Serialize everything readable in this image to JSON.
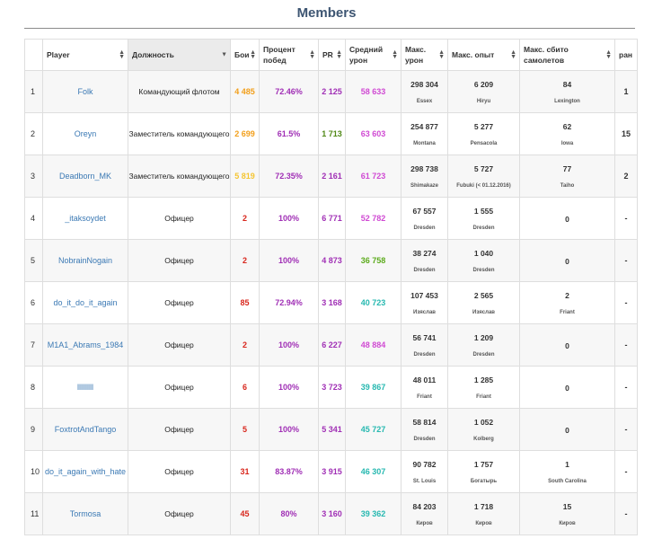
{
  "title": "Members",
  "headers": [
    "Player",
    "Должность",
    "Бои",
    "Процент побед",
    "PR",
    "Средний урон",
    "Макс. урон",
    "Макс. опыт",
    "Макс. сбито самолетов",
    "ран"
  ],
  "colors": {
    "title": "#3d5572",
    "player": "#3b79b4",
    "orange": "#f29f1a",
    "yellow": "#f5c531",
    "red": "#d8261c",
    "purple": "#a02fb5",
    "dark_green": "#508816",
    "green": "#5cab1c",
    "teal": "#26b8b0",
    "violet": "#d04ad3"
  },
  "rows": [
    {
      "num": "1",
      "player": "Folk",
      "position": "Командующий флотом",
      "battles": "4 485",
      "battles_color": "orange",
      "winrate": "72.46%",
      "winrate_color": "purple",
      "pr": "2 125",
      "pr_color": "purple",
      "avg": "58 633",
      "avg_color": "violet",
      "maxdmg": "298 304",
      "maxdmg_ship": "Essex",
      "maxexp": "6 209",
      "maxexp_ship": "Hiryu",
      "planes": "84",
      "planes_ship": "Lexington",
      "rank": "1"
    },
    {
      "num": "2",
      "player": "Oreyn",
      "position": "Заместитель командующего",
      "battles": "2 699",
      "battles_color": "orange",
      "winrate": "61.5%",
      "winrate_color": "purple",
      "pr": "1 713",
      "pr_color": "dark_green",
      "avg": "63 603",
      "avg_color": "violet",
      "maxdmg": "254 877",
      "maxdmg_ship": "Montana",
      "maxexp": "5 277",
      "maxexp_ship": "Pensacola",
      "planes": "62",
      "planes_ship": "Iowa",
      "rank": "15"
    },
    {
      "num": "3",
      "player": "Deadborn_MK",
      "position": "Заместитель командующего",
      "battles": "5 819",
      "battles_color": "yellow",
      "winrate": "72.35%",
      "winrate_color": "purple",
      "pr": "2 161",
      "pr_color": "purple",
      "avg": "61 723",
      "avg_color": "violet",
      "maxdmg": "298 738",
      "maxdmg_ship": "Shimakaze",
      "maxexp": "5 727",
      "maxexp_ship": "Fubuki (< 01.12.2016)",
      "planes": "77",
      "planes_ship": "Taiho",
      "rank": "2"
    },
    {
      "num": "4",
      "player": "_itaksoydet",
      "position": "Офицер",
      "battles": "2",
      "battles_color": "red",
      "winrate": "100%",
      "winrate_color": "purple",
      "pr": "6 771",
      "pr_color": "purple",
      "avg": "52 782",
      "avg_color": "violet",
      "maxdmg": "67 557",
      "maxdmg_ship": "Dresden",
      "maxexp": "1 555",
      "maxexp_ship": "Dresden",
      "planes": "0",
      "planes_ship": "",
      "rank": "-"
    },
    {
      "num": "5",
      "player": "NobrainNogain",
      "position": "Офицер",
      "battles": "2",
      "battles_color": "red",
      "winrate": "100%",
      "winrate_color": "purple",
      "pr": "4 873",
      "pr_color": "purple",
      "avg": "36 758",
      "avg_color": "green",
      "maxdmg": "38 274",
      "maxdmg_ship": "Dresden",
      "maxexp": "1 040",
      "maxexp_ship": "Dresden",
      "planes": "0",
      "planes_ship": "",
      "rank": "-"
    },
    {
      "num": "6",
      "player": "do_it_do_it_again",
      "position": "Офицер",
      "battles": "85",
      "battles_color": "red",
      "winrate": "72.94%",
      "winrate_color": "purple",
      "pr": "3 168",
      "pr_color": "purple",
      "avg": "40 723",
      "avg_color": "teal",
      "maxdmg": "107 453",
      "maxdmg_ship": "Изяслав",
      "maxexp": "2 565",
      "maxexp_ship": "Изяслав",
      "planes": "2",
      "planes_ship": "Friant",
      "rank": "-"
    },
    {
      "num": "7",
      "player": "M1A1_Abrams_1984",
      "position": "Офицер",
      "battles": "2",
      "battles_color": "red",
      "winrate": "100%",
      "winrate_color": "purple",
      "pr": "6 227",
      "pr_color": "purple",
      "avg": "48 884",
      "avg_color": "violet",
      "maxdmg": "56 741",
      "maxdmg_ship": "Dresden",
      "maxexp": "1 209",
      "maxexp_ship": "Dresden",
      "planes": "0",
      "planes_ship": "",
      "rank": "-"
    },
    {
      "num": "8",
      "player": "lllllllll",
      "position": "Офицер",
      "battles": "6",
      "battles_color": "red",
      "winrate": "100%",
      "winrate_color": "purple",
      "pr": "3 723",
      "pr_color": "purple",
      "avg": "39 867",
      "avg_color": "teal",
      "maxdmg": "48 011",
      "maxdmg_ship": "Friant",
      "maxexp": "1 285",
      "maxexp_ship": "Friant",
      "planes": "0",
      "planes_ship": "",
      "rank": "-"
    },
    {
      "num": "9",
      "player": "FoxtrotAndTango",
      "position": "Офицер",
      "battles": "5",
      "battles_color": "red",
      "winrate": "100%",
      "winrate_color": "purple",
      "pr": "5 341",
      "pr_color": "purple",
      "avg": "45 727",
      "avg_color": "teal",
      "maxdmg": "58 814",
      "maxdmg_ship": "Dresden",
      "maxexp": "1 052",
      "maxexp_ship": "Kolberg",
      "planes": "0",
      "planes_ship": "",
      "rank": "-"
    },
    {
      "num": "10",
      "player": "do_it_again_with_hate",
      "position": "Офицер",
      "battles": "31",
      "battles_color": "red",
      "winrate": "83.87%",
      "winrate_color": "purple",
      "pr": "3 915",
      "pr_color": "purple",
      "avg": "46 307",
      "avg_color": "teal",
      "maxdmg": "90 782",
      "maxdmg_ship": "St. Louis",
      "maxexp": "1 757",
      "maxexp_ship": "Богатырь",
      "planes": "1",
      "planes_ship": "South Carolina",
      "rank": "-"
    },
    {
      "num": "11",
      "player": "Tormosa",
      "position": "Офицер",
      "battles": "45",
      "battles_color": "red",
      "winrate": "80%",
      "winrate_color": "purple",
      "pr": "3 160",
      "pr_color": "purple",
      "avg": "39 362",
      "avg_color": "teal",
      "maxdmg": "84 203",
      "maxdmg_ship": "Киров",
      "maxexp": "1 718",
      "maxexp_ship": "Киров",
      "planes": "15",
      "planes_ship": "Киров",
      "rank": "-"
    }
  ]
}
